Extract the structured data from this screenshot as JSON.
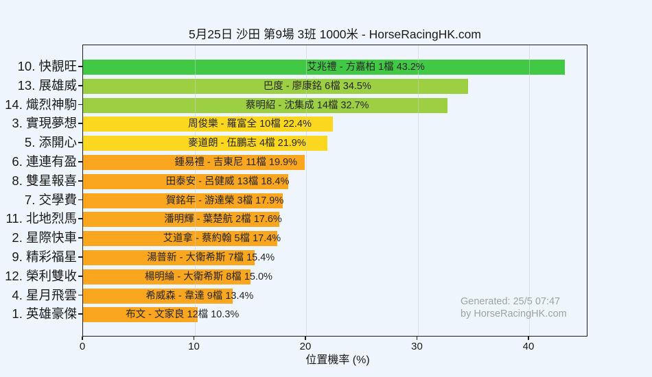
{
  "title": "5月25日  沙田  第9場  3班  1000米 - HorseRacingHK.com",
  "watermark": {
    "line1": "Generated: 25/5 07:47",
    "line2": "by HorseRacingHK.com"
  },
  "chart_data": {
    "type": "bar",
    "orientation": "horizontal",
    "title": "5月25日  沙田  第9場  3班  1000米 - HorseRacingHK.com",
    "xlabel": "位置機率 (%)",
    "xlim": [
      0,
      45.3
    ],
    "xticks": [
      0,
      10,
      20,
      30,
      40
    ],
    "grid": "vertical",
    "categories": [
      "10. 快靚旺",
      "13. 展雄威",
      "14. 熾烈神駒",
      "3. 實現夢想",
      "5. 添開心",
      "6. 連連有盈",
      "8. 雙星報喜",
      "7. 交學費",
      "11. 北地烈馬",
      "2. 星際快車",
      "9. 精彩福星",
      "12. 榮利雙收",
      "4. 星月飛雲",
      "1. 英雄豪傑"
    ],
    "values": [
      43.2,
      34.5,
      32.7,
      22.4,
      21.9,
      19.9,
      18.4,
      17.9,
      17.6,
      17.4,
      15.4,
      15.0,
      13.4,
      10.3
    ],
    "bar_labels": [
      "艾兆禮 - 方嘉柏 1檔  43.2%",
      "巴度 - 廖康銘 6檔  34.5%",
      "蔡明紹 - 沈集成 14檔  32.7%",
      "周俊樂 - 羅富全 10檔  22.4%",
      "麥道朗 - 伍鵬志 4檔  21.9%",
      "鍾易禮 - 吉東尼 11檔  19.9%",
      "田泰安 - 呂健威 13檔  18.4%",
      "賀銘年 - 游達榮 3檔  17.9%",
      "潘明輝 - 葉楚航 2檔  17.6%",
      "艾道拿 - 蔡約翰 5檔  17.4%",
      "湯普新 - 大衛希斯 7檔  15.4%",
      "楊明綸 - 大衛希斯 8檔  15.0%",
      "希威森 - 韋達 9檔  13.4%",
      "布文 - 文家良 12檔  10.3%"
    ],
    "bar_colors": [
      "#41c946",
      "#9dcf42",
      "#9dcf42",
      "#fbd71f",
      "#fbd71f",
      "#faa61f",
      "#faa61f",
      "#faa61f",
      "#faa61f",
      "#faa61f",
      "#faa61f",
      "#faa61f",
      "#faa61f",
      "#faa61f"
    ]
  }
}
